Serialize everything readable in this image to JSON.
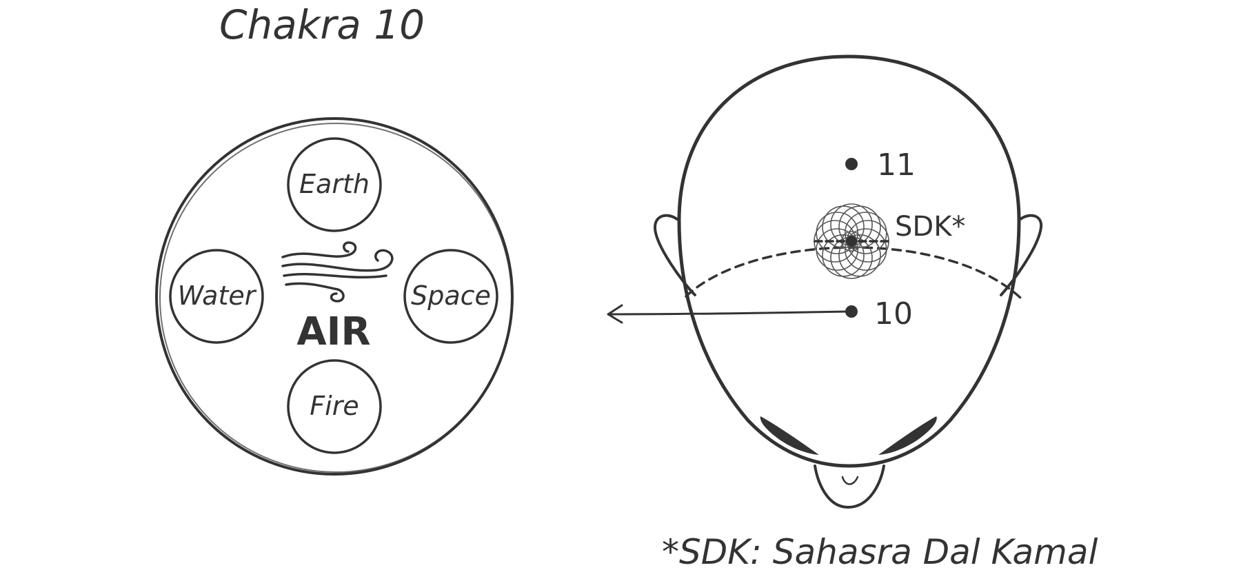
{
  "title": "Chakra 10",
  "chakra": {
    "center_label": "AIR",
    "elements": {
      "top": "Earth",
      "left": "Water",
      "right": "Space",
      "bottom": "Fire"
    },
    "center_symbol_icon": "wind-icon"
  },
  "head": {
    "marker_upper": "11",
    "marker_lower": "10",
    "lotus_label": "SDK*",
    "lotus_icon": "flower-of-life-icon"
  },
  "footnote": "*SDK: Sahasra Dal Kamal",
  "colors": {
    "ink": "#333333",
    "lotus": "#555555",
    "background": "#ffffff"
  }
}
